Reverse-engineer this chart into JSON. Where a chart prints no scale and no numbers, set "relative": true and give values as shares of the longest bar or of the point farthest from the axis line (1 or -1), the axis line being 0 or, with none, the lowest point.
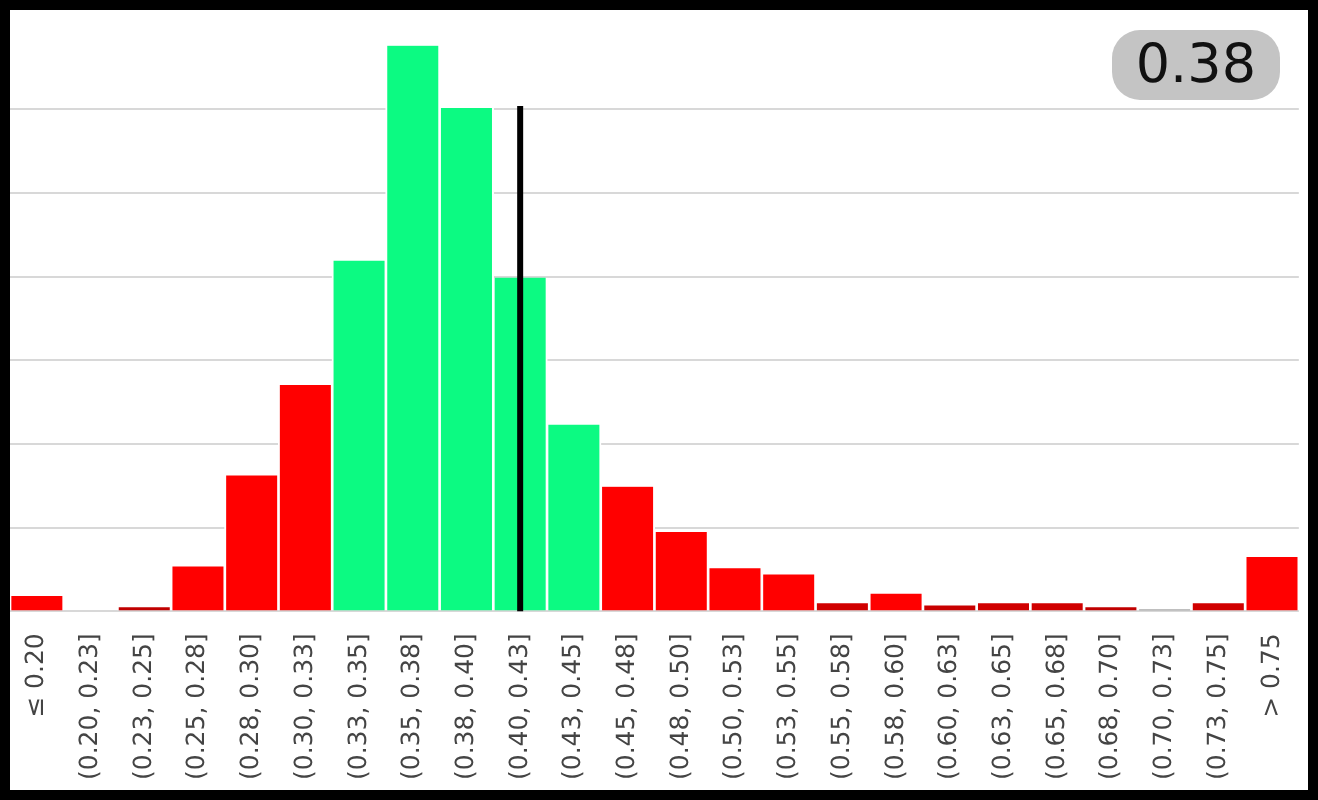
{
  "chart_data": {
    "type": "bar",
    "relative": true,
    "grid": "y",
    "categories": [
      "≤ 0.20",
      "(0.20, 0.23]",
      "(0.23, 0.25]",
      "(0.25, 0.28]",
      "(0.28, 0.30]",
      "(0.30, 0.33]",
      "(0.33, 0.35]",
      "(0.35, 0.38]",
      "(0.38, 0.40]",
      "(0.40, 0.43]",
      "(0.43, 0.45]",
      "(0.45, 0.48]",
      "(0.48, 0.50]",
      "(0.50, 0.53]",
      "(0.53, 0.55]",
      "(0.55, 0.58]",
      "(0.58, 0.60]",
      "(0.60, 0.63]",
      "(0.63, 0.65]",
      "(0.65, 0.68]",
      "(0.68, 0.70]",
      "(0.70, 0.73]",
      "(0.73, 0.75]",
      "> 0.75"
    ],
    "values": [
      0.027,
      0,
      0.007,
      0.079,
      0.24,
      0.4,
      0.62,
      1,
      0.89,
      0.59,
      0.33,
      0.22,
      0.14,
      0.076,
      0.065,
      0.014,
      0.031,
      0.01,
      0.014,
      0.014,
      0.007,
      0.003,
      0.014,
      0.096
    ],
    "colors": [
      "#ff0000",
      "#ff0000",
      "#c00000",
      "#ff0000",
      "#ff0000",
      "#ff0000",
      "#0cfa82",
      "#0cfa82",
      "#0cfa82",
      "#0cfa82",
      "#0cfa82",
      "#ff0000",
      "#ff0000",
      "#ff0000",
      "#ff0000",
      "#d00000",
      "#ff0000",
      "#c80000",
      "#d00000",
      "#d00000",
      "#c00000",
      "#808080",
      "#d00000",
      "#ff0000"
    ],
    "ref_lines": [
      {
        "axis": "x",
        "value": "(0.40, 0.43]",
        "color": "#000000"
      }
    ],
    "annotations": [
      "0.38"
    ]
  }
}
